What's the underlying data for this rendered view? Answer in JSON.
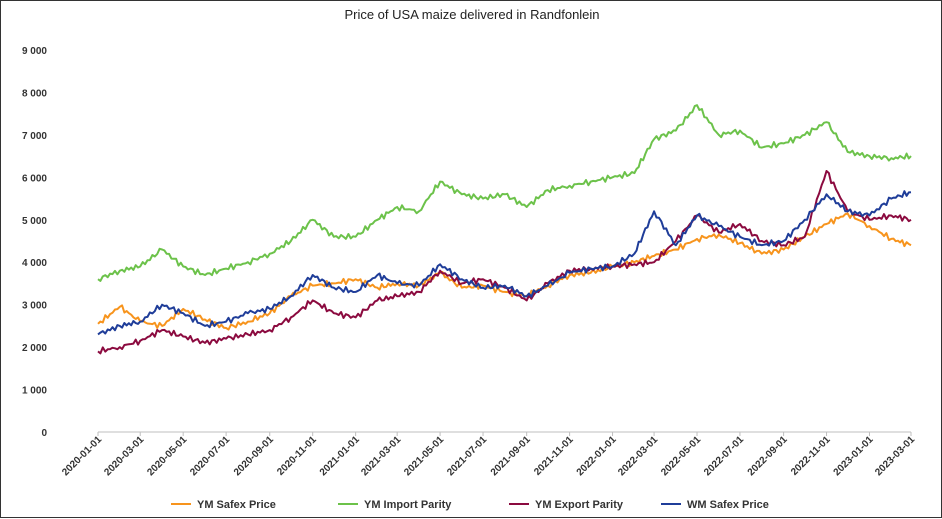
{
  "chart_data": {
    "type": "line",
    "title": "Price of USA maize delivered in Randfonlein",
    "xlabel": "",
    "ylabel": "",
    "ylim": [
      0,
      9000
    ],
    "grid": false,
    "legend_position": "bottom",
    "yticks": [
      "0",
      "1 000",
      "2 000",
      "3 000",
      "4 000",
      "5 000",
      "6 000",
      "7 000",
      "8 000",
      "9 000"
    ],
    "xticks": [
      "2020-01-01",
      "2020-03-01",
      "2020-05-01",
      "2020-07-01",
      "2020-09-01",
      "2020-11-01",
      "2021-01-01",
      "2021-03-01",
      "2021-05-01",
      "2021-07-01",
      "2021-09-01",
      "2021-11-01",
      "2022-01-01",
      "2022-03-01",
      "2022-05-01",
      "2022-07-01",
      "2022-09-01",
      "2022-11-01",
      "2023-01-01",
      "2023-03-01"
    ],
    "x": [
      "2020-01-01",
      "2020-02-01",
      "2020-03-01",
      "2020-04-01",
      "2020-05-01",
      "2020-06-01",
      "2020-07-01",
      "2020-08-01",
      "2020-09-01",
      "2020-10-01",
      "2020-11-01",
      "2020-12-01",
      "2021-01-01",
      "2021-02-01",
      "2021-03-01",
      "2021-04-01",
      "2021-05-01",
      "2021-06-01",
      "2021-07-01",
      "2021-08-01",
      "2021-09-01",
      "2021-10-01",
      "2021-11-01",
      "2021-12-01",
      "2022-01-01",
      "2022-02-01",
      "2022-03-01",
      "2022-04-01",
      "2022-05-01",
      "2022-06-01",
      "2022-07-01",
      "2022-08-01",
      "2022-09-01",
      "2022-10-01",
      "2022-11-01",
      "2022-12-01",
      "2023-01-01",
      "2023-02-01",
      "2023-03-01"
    ],
    "series": [
      {
        "name": "YM Safex Price",
        "color": "#F7941D",
        "values": [
          2550,
          2950,
          2600,
          2500,
          2900,
          2650,
          2450,
          2600,
          2800,
          3200,
          3450,
          3500,
          3600,
          3400,
          3500,
          3450,
          3750,
          3400,
          3450,
          3300,
          3200,
          3450,
          3700,
          3750,
          3900,
          4000,
          4150,
          4300,
          4550,
          4650,
          4450,
          4200,
          4300,
          4600,
          4900,
          5150,
          4850,
          4550,
          4400
        ]
      },
      {
        "name": "YM Import Parity",
        "color": "#6CC24A",
        "values": [
          3600,
          3800,
          3900,
          4300,
          3900,
          3700,
          3850,
          4000,
          4200,
          4500,
          5000,
          4600,
          4600,
          5000,
          5300,
          5200,
          5900,
          5600,
          5500,
          5600,
          5300,
          5700,
          5800,
          5900,
          6000,
          6100,
          6900,
          7100,
          7700,
          7000,
          7100,
          6700,
          6800,
          7000,
          7300,
          6600,
          6500,
          6450,
          6500
        ]
      },
      {
        "name": "YM Export Parity",
        "color": "#8B0A3F",
        "values": [
          1900,
          2000,
          2150,
          2400,
          2250,
          2100,
          2200,
          2300,
          2400,
          2700,
          3100,
          2800,
          2700,
          3100,
          3200,
          3300,
          3800,
          3500,
          3600,
          3400,
          3100,
          3500,
          3800,
          3850,
          3900,
          3950,
          4000,
          4500,
          5100,
          4700,
          4900,
          4500,
          4400,
          4600,
          6150,
          5200,
          5000,
          5100,
          5000
        ]
      },
      {
        "name": "WM Safex Price",
        "color": "#1F3D99",
        "values": [
          2300,
          2500,
          2600,
          3000,
          2800,
          2500,
          2600,
          2800,
          2900,
          3200,
          3700,
          3400,
          3300,
          3700,
          3500,
          3450,
          3950,
          3600,
          3400,
          3450,
          3200,
          3450,
          3750,
          3850,
          3900,
          4200,
          5200,
          4400,
          5100,
          4850,
          4600,
          4400,
          4500,
          5000,
          5600,
          5200,
          5100,
          5500,
          5650
        ]
      }
    ]
  },
  "legend": [
    {
      "label": "YM Safex Price",
      "color": "#F7941D"
    },
    {
      "label": "YM Import Parity",
      "color": "#6CC24A"
    },
    {
      "label": "YM Export Parity",
      "color": "#8B0A3F"
    },
    {
      "label": "WM Safex Price",
      "color": "#1F3D99"
    }
  ]
}
